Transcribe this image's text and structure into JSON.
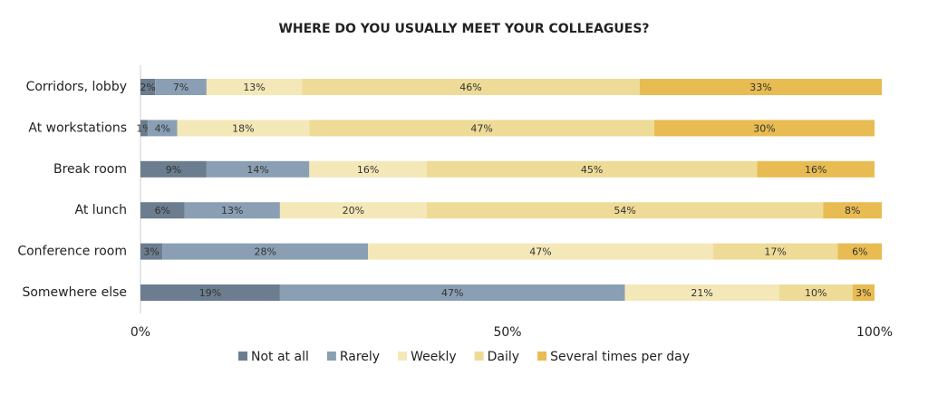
{
  "chart_data": {
    "type": "stacked-bar-horizontal",
    "title": "WHERE DO YOU USUALLY MEET YOUR COLLEAGUES?",
    "categories": [
      "Corridors, lobby",
      "At workstations",
      "Break room",
      "At lunch",
      "Conference room",
      "Somewhere else"
    ],
    "series": [
      {
        "name": "Not at all",
        "color": "#6b7d8f",
        "values": [
          2,
          1,
          9,
          6,
          3,
          19
        ],
        "value_labels": [
          "2%",
          "1%",
          "9%",
          "6%",
          "3%",
          "19%"
        ]
      },
      {
        "name": "Rarely",
        "color": "#8a9fb3",
        "values": [
          7,
          4,
          14,
          13,
          28,
          47
        ],
        "value_labels": [
          "7%",
          "4%",
          "14%",
          "13%",
          "28%",
          "47%"
        ]
      },
      {
        "name": "Weekly",
        "color": "#f4e8b8",
        "values": [
          13,
          18,
          16,
          20,
          47,
          21
        ],
        "value_labels": [
          "13%",
          "18%",
          "16%",
          "20%",
          "47%",
          "21%"
        ]
      },
      {
        "name": "Daily",
        "color": "#eedb97",
        "values": [
          46,
          47,
          45,
          54,
          17,
          10
        ],
        "value_labels": [
          "46%",
          "47%",
          "45%",
          "54%",
          "17%",
          "10%"
        ]
      },
      {
        "name": "Several times per day",
        "color": "#e8bc52",
        "values": [
          33,
          30,
          16,
          8,
          6,
          3
        ],
        "value_labels": [
          "33%",
          "30%",
          "16%",
          "8%",
          "6%",
          "3%"
        ]
      }
    ],
    "xlim": [
      0,
      100
    ],
    "xticks": [
      {
        "value": 0,
        "label": "0%"
      },
      {
        "value": 50,
        "label": "50%"
      },
      {
        "value": 100,
        "label": "100%"
      }
    ],
    "legend": "bottom"
  }
}
